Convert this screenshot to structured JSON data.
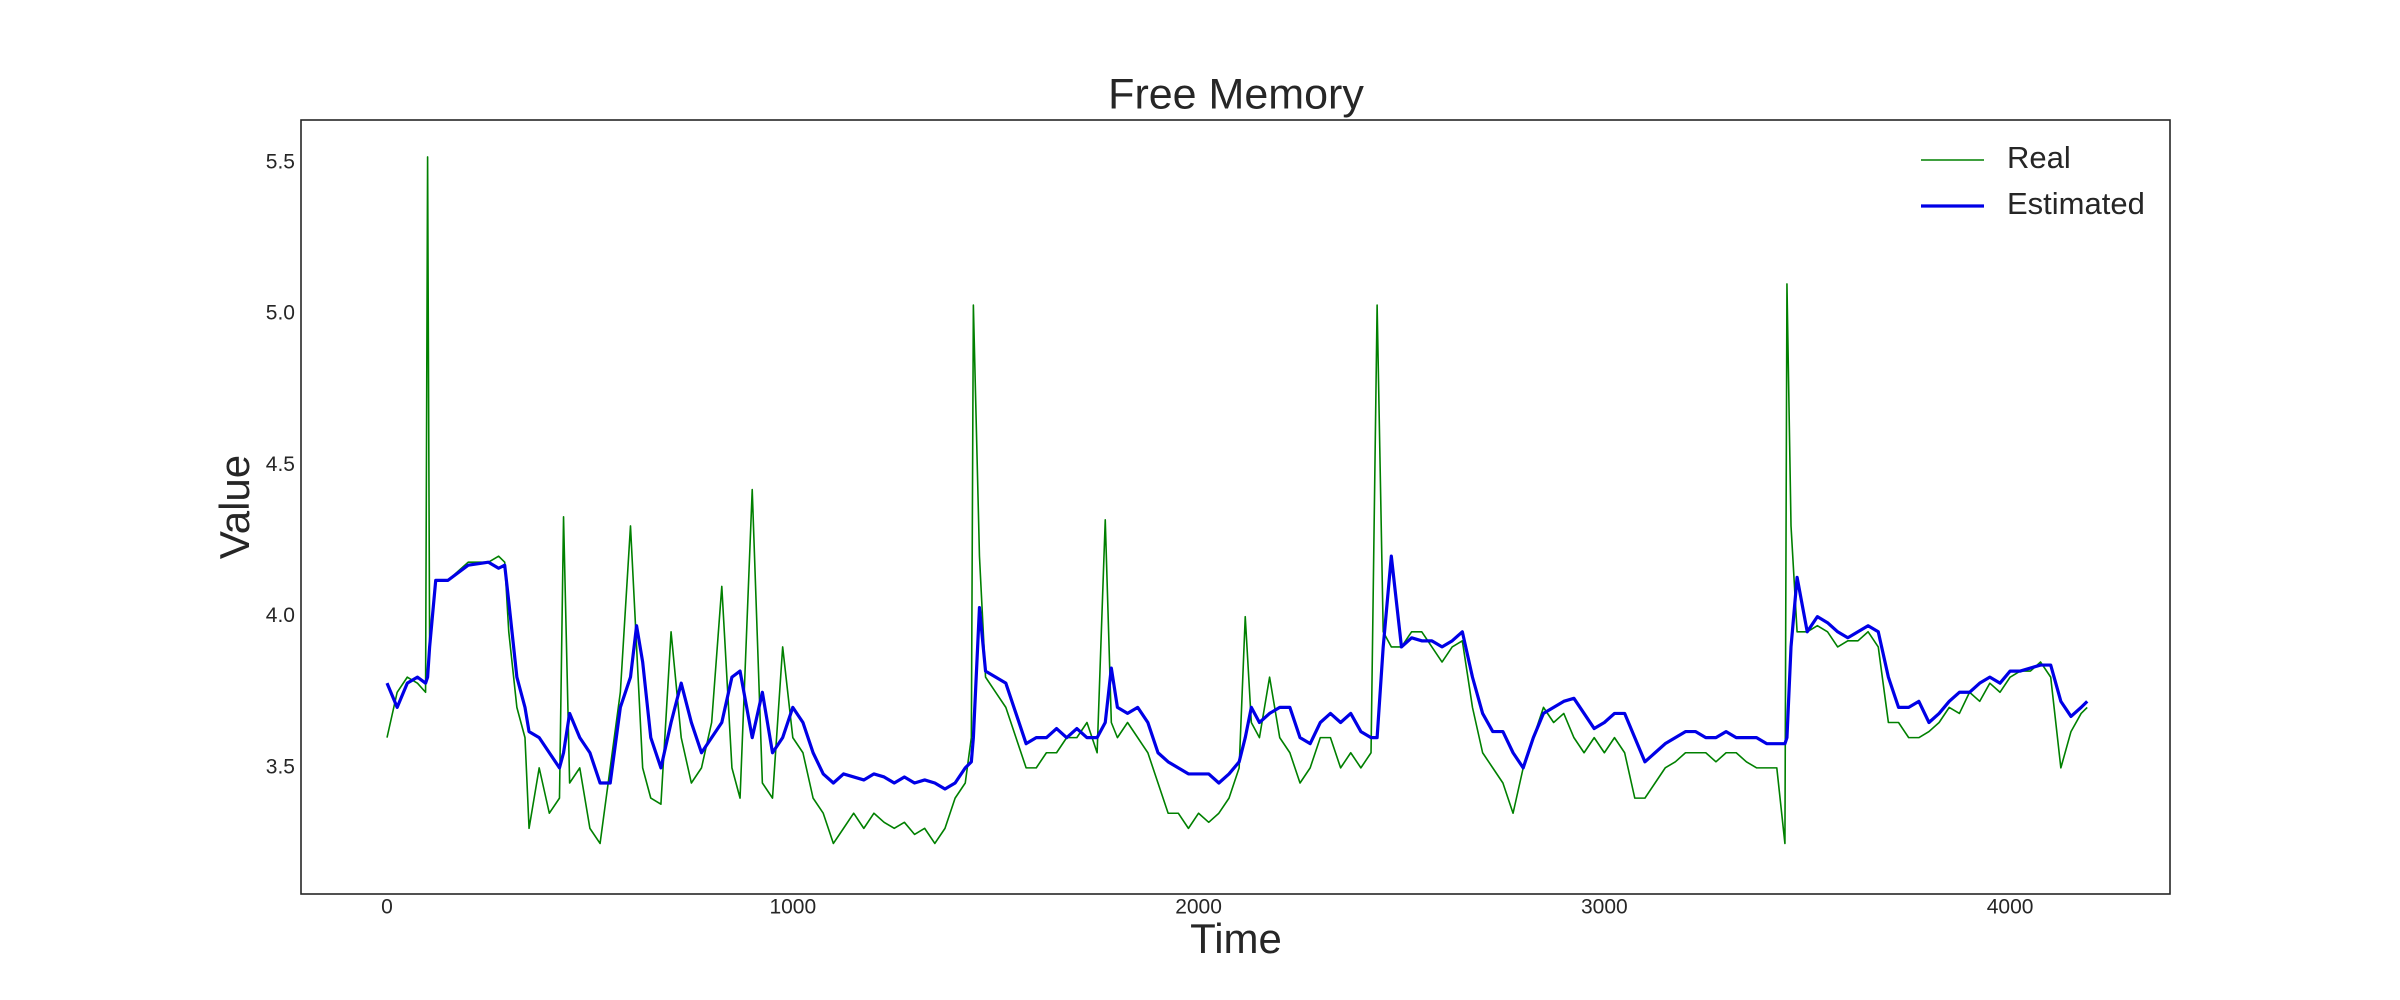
{
  "chart_data": {
    "type": "line",
    "title": "Free Memory",
    "xlabel": "Time",
    "ylabel": "Value",
    "legend": "upper right",
    "grid": false,
    "xlim": [
      -212,
      4394
    ],
    "ylim": [
      3.083,
      5.642
    ],
    "xticks": [
      0,
      1000,
      2000,
      3000,
      4000
    ],
    "yticks": [
      3.5,
      {
        "value": 4,
        "label": "4.0"
      },
      4.5,
      {
        "value": 5,
        "label": "5.0"
      },
      5.5
    ],
    "x": [
      0,
      25,
      50,
      75,
      95,
      100,
      105,
      120,
      150,
      200,
      250,
      275,
      290,
      300,
      320,
      340,
      350,
      375,
      400,
      425,
      435,
      450,
      475,
      500,
      525,
      550,
      575,
      600,
      615,
      630,
      650,
      675,
      700,
      725,
      750,
      775,
      800,
      825,
      850,
      870,
      900,
      925,
      950,
      975,
      1000,
      1025,
      1050,
      1075,
      1100,
      1125,
      1150,
      1175,
      1200,
      1225,
      1250,
      1275,
      1300,
      1325,
      1350,
      1375,
      1400,
      1425,
      1440,
      1445,
      1460,
      1475,
      1500,
      1525,
      1550,
      1575,
      1600,
      1625,
      1650,
      1675,
      1700,
      1725,
      1750,
      1770,
      1785,
      1800,
      1825,
      1850,
      1875,
      1900,
      1925,
      1950,
      1975,
      2000,
      2025,
      2050,
      2075,
      2100,
      2115,
      2130,
      2150,
      2175,
      2200,
      2225,
      2250,
      2275,
      2300,
      2325,
      2350,
      2375,
      2400,
      2425,
      2440,
      2455,
      2475,
      2500,
      2525,
      2550,
      2575,
      2600,
      2625,
      2650,
      2675,
      2700,
      2725,
      2750,
      2775,
      2800,
      2825,
      2850,
      2875,
      2900,
      2925,
      2950,
      2975,
      3000,
      3025,
      3050,
      3075,
      3100,
      3125,
      3150,
      3175,
      3200,
      3225,
      3250,
      3275,
      3300,
      3325,
      3350,
      3375,
      3400,
      3425,
      3445,
      3450,
      3460,
      3475,
      3500,
      3525,
      3550,
      3575,
      3600,
      3625,
      3650,
      3675,
      3700,
      3725,
      3750,
      3775,
      3800,
      3825,
      3850,
      3875,
      3900,
      3925,
      3950,
      3975,
      4000,
      4025,
      4050,
      4075,
      4100,
      4125,
      4150,
      4175,
      4190
    ],
    "series": [
      {
        "name": "Real",
        "color": "#008000",
        "width": 1.6,
        "values": [
          3.6,
          3.75,
          3.8,
          3.78,
          3.75,
          5.52,
          3.9,
          4.12,
          4.12,
          4.18,
          4.18,
          4.2,
          4.18,
          3.95,
          3.7,
          3.6,
          3.3,
          3.5,
          3.35,
          3.4,
          4.33,
          3.45,
          3.5,
          3.3,
          3.25,
          3.5,
          3.75,
          4.3,
          3.9,
          3.5,
          3.4,
          3.38,
          3.95,
          3.6,
          3.45,
          3.5,
          3.65,
          4.1,
          3.5,
          3.4,
          4.42,
          3.45,
          3.4,
          3.9,
          3.6,
          3.55,
          3.4,
          3.35,
          3.25,
          3.3,
          3.35,
          3.3,
          3.35,
          3.32,
          3.3,
          3.32,
          3.28,
          3.3,
          3.25,
          3.3,
          3.4,
          3.45,
          3.6,
          5.03,
          4.2,
          3.8,
          3.75,
          3.7,
          3.6,
          3.5,
          3.5,
          3.55,
          3.55,
          3.6,
          3.6,
          3.65,
          3.55,
          4.32,
          3.65,
          3.6,
          3.65,
          3.6,
          3.55,
          3.45,
          3.35,
          3.35,
          3.3,
          3.35,
          3.32,
          3.35,
          3.4,
          3.5,
          4.0,
          3.65,
          3.6,
          3.8,
          3.6,
          3.55,
          3.45,
          3.5,
          3.6,
          3.6,
          3.5,
          3.55,
          3.5,
          3.55,
          5.03,
          3.95,
          3.9,
          3.9,
          3.95,
          3.95,
          3.9,
          3.85,
          3.9,
          3.92,
          3.7,
          3.55,
          3.5,
          3.45,
          3.35,
          3.5,
          3.6,
          3.7,
          3.65,
          3.68,
          3.6,
          3.55,
          3.6,
          3.55,
          3.6,
          3.55,
          3.4,
          3.4,
          3.45,
          3.5,
          3.52,
          3.55,
          3.55,
          3.55,
          3.52,
          3.55,
          3.55,
          3.52,
          3.5,
          3.5,
          3.5,
          3.25,
          5.1,
          4.3,
          3.95,
          3.95,
          3.97,
          3.95,
          3.9,
          3.92,
          3.92,
          3.95,
          3.9,
          3.65,
          3.65,
          3.6,
          3.6,
          3.62,
          3.65,
          3.7,
          3.68,
          3.75,
          3.72,
          3.78,
          3.75,
          3.8,
          3.82,
          3.82,
          3.85,
          3.8,
          3.5,
          3.62,
          3.68,
          3.7
        ]
      },
      {
        "name": "Estimated",
        "color": "#0000e6",
        "width": 3.2,
        "values": [
          3.78,
          3.7,
          3.78,
          3.8,
          3.78,
          3.8,
          3.9,
          4.12,
          4.12,
          4.17,
          4.18,
          4.16,
          4.17,
          4.05,
          3.8,
          3.7,
          3.62,
          3.6,
          3.55,
          3.5,
          3.55,
          3.68,
          3.6,
          3.55,
          3.45,
          3.45,
          3.7,
          3.8,
          3.97,
          3.85,
          3.6,
          3.5,
          3.65,
          3.78,
          3.65,
          3.55,
          3.6,
          3.65,
          3.8,
          3.82,
          3.6,
          3.75,
          3.55,
          3.6,
          3.7,
          3.65,
          3.55,
          3.48,
          3.45,
          3.48,
          3.47,
          3.46,
          3.48,
          3.47,
          3.45,
          3.47,
          3.45,
          3.46,
          3.45,
          3.43,
          3.45,
          3.5,
          3.52,
          3.6,
          4.03,
          3.82,
          3.8,
          3.78,
          3.68,
          3.58,
          3.6,
          3.6,
          3.63,
          3.6,
          3.63,
          3.6,
          3.6,
          3.65,
          3.83,
          3.7,
          3.68,
          3.7,
          3.65,
          3.55,
          3.52,
          3.5,
          3.48,
          3.48,
          3.48,
          3.45,
          3.48,
          3.52,
          3.6,
          3.7,
          3.65,
          3.68,
          3.7,
          3.7,
          3.6,
          3.58,
          3.65,
          3.68,
          3.65,
          3.68,
          3.62,
          3.6,
          3.6,
          3.9,
          4.2,
          3.9,
          3.93,
          3.92,
          3.92,
          3.9,
          3.92,
          3.95,
          3.8,
          3.68,
          3.62,
          3.62,
          3.55,
          3.5,
          3.6,
          3.68,
          3.7,
          3.72,
          3.73,
          3.68,
          3.63,
          3.65,
          3.68,
          3.68,
          3.6,
          3.52,
          3.55,
          3.58,
          3.6,
          3.62,
          3.62,
          3.6,
          3.6,
          3.62,
          3.6,
          3.6,
          3.6,
          3.58,
          3.58,
          3.58,
          3.6,
          3.9,
          4.13,
          3.95,
          4.0,
          3.98,
          3.95,
          3.93,
          3.95,
          3.97,
          3.95,
          3.8,
          3.7,
          3.7,
          3.72,
          3.65,
          3.68,
          3.72,
          3.75,
          3.75,
          3.78,
          3.8,
          3.78,
          3.82,
          3.82,
          3.83,
          3.84,
          3.84,
          3.72,
          3.67,
          3.7,
          3.72
        ]
      }
    ]
  }
}
